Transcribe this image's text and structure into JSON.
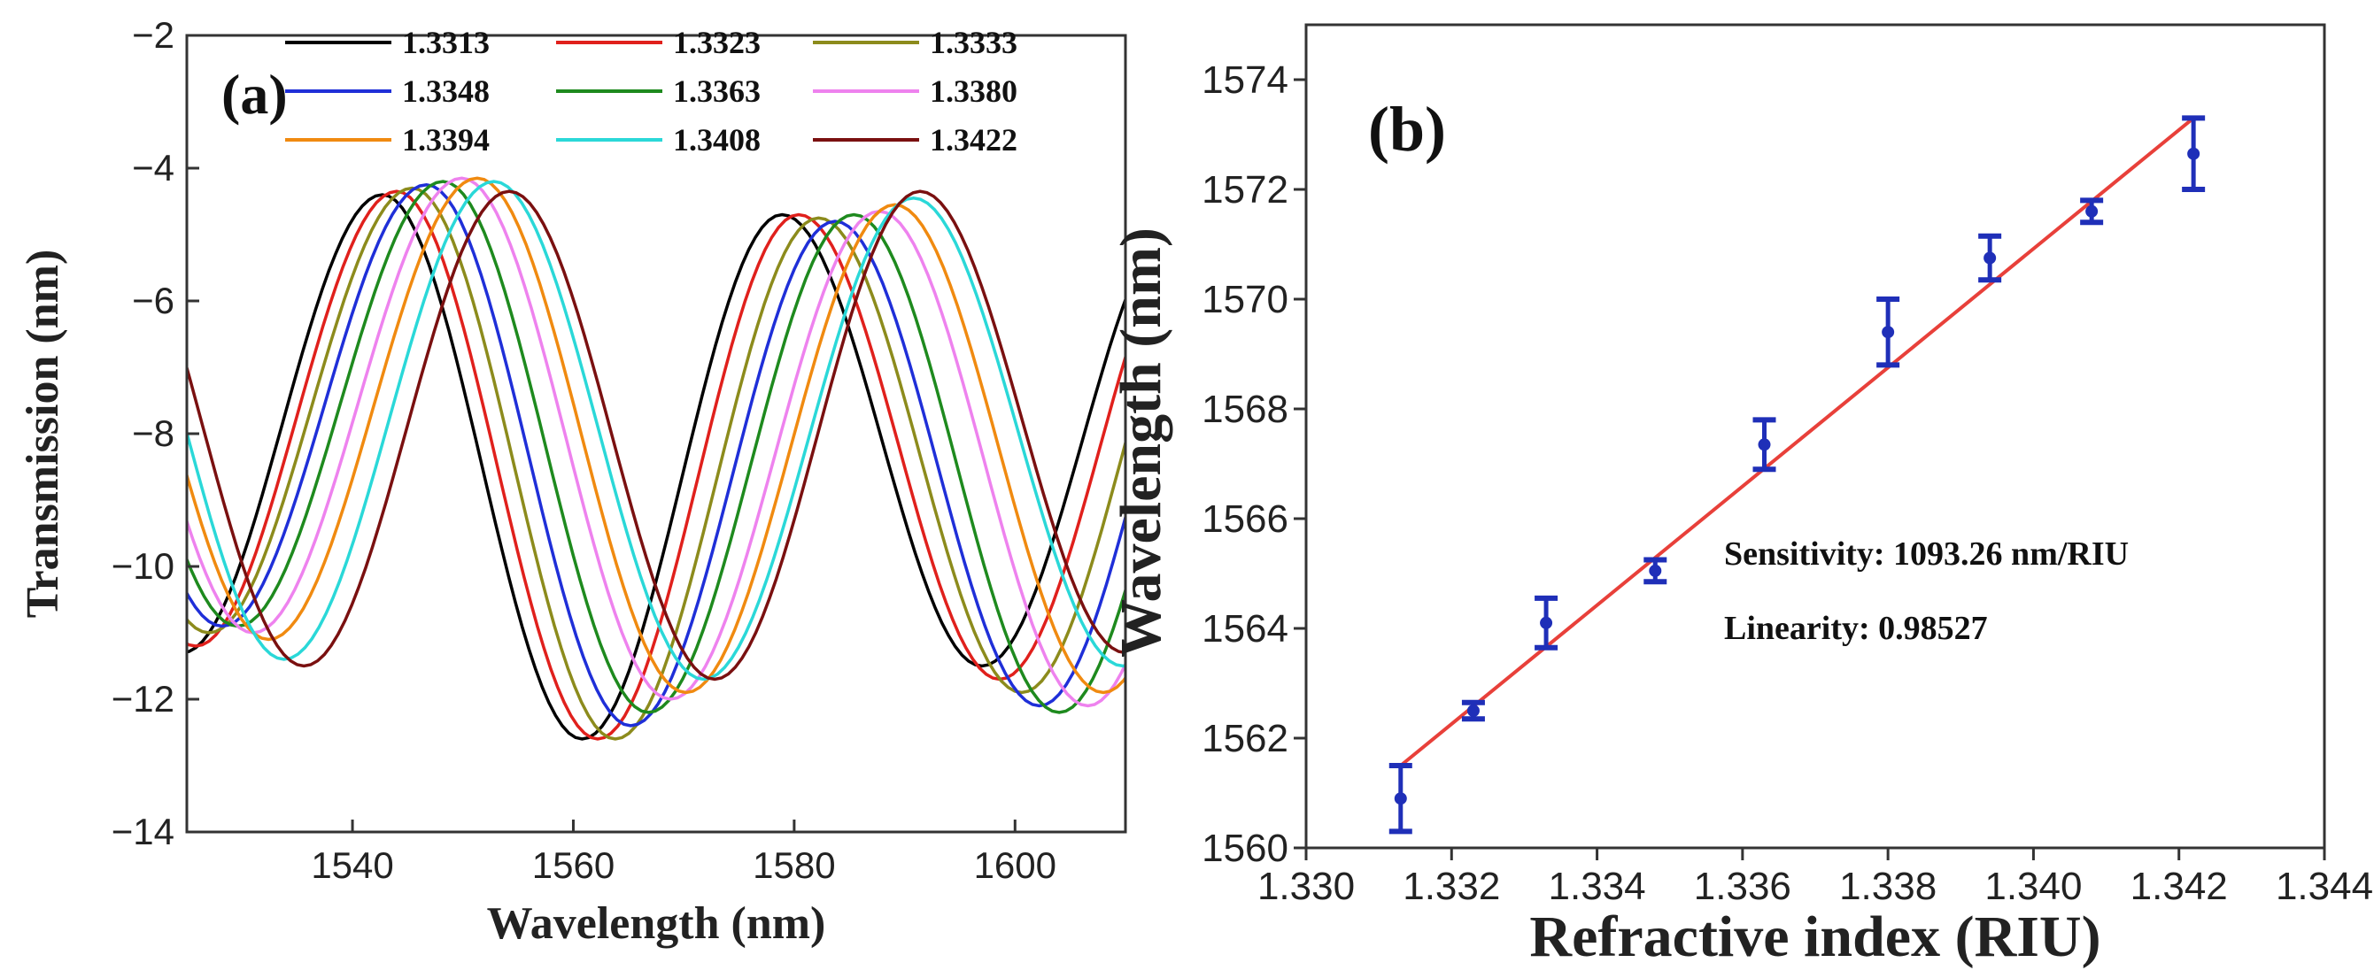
{
  "chart_data": [
    {
      "type": "line",
      "panel_label": "(a)",
      "xlabel": "Wavelength (nm)",
      "ylabel": "Transmission (nm)",
      "xlim": [
        1525,
        1610
      ],
      "ylim": [
        -14,
        -2
      ],
      "xticks": [
        1540,
        1560,
        1580,
        1600
      ],
      "yticks": [
        -2,
        -4,
        -6,
        -8,
        -10,
        -12,
        -14
      ],
      "legend_position": "top-right",
      "series": [
        {
          "name": "1.3313",
          "color": "#000000",
          "minima": [
            1524.6,
            1560.8,
            1597.0
          ],
          "min_values": [
            -11.3,
            -12.6,
            -11.5
          ],
          "max_values": [
            -4.4,
            -4.7
          ]
        },
        {
          "name": "1.3323",
          "color": "#e0201c",
          "minima": [
            1525.8,
            1562.2,
            1598.6
          ],
          "min_values": [
            -11.2,
            -12.6,
            -11.7
          ],
          "max_values": [
            -4.35,
            -4.7
          ]
        },
        {
          "name": "1.3333",
          "color": "#8c8b1c",
          "minima": [
            1527.0,
            1563.8,
            1600.6
          ],
          "min_values": [
            -11.0,
            -12.6,
            -11.9
          ],
          "max_values": [
            -4.3,
            -4.75
          ]
        },
        {
          "name": "1.3348",
          "color": "#1f2fd8",
          "minima": [
            1528.2,
            1565.2,
            1602.2
          ],
          "min_values": [
            -10.9,
            -12.4,
            -12.1
          ],
          "max_values": [
            -4.25,
            -4.8
          ]
        },
        {
          "name": "1.3363",
          "color": "#1e8a1e",
          "minima": [
            1529.6,
            1566.8,
            1604.0
          ],
          "min_values": [
            -10.9,
            -12.2,
            -12.2
          ],
          "max_values": [
            -4.2,
            -4.7
          ]
        },
        {
          "name": "1.3380",
          "color": "#ee82ee",
          "minima": [
            1531.0,
            1568.8,
            1606.6
          ],
          "min_values": [
            -11.0,
            -12.0,
            -12.1
          ],
          "max_values": [
            -4.15,
            -4.65
          ]
        },
        {
          "name": "1.3394",
          "color": "#f08a10",
          "minima": [
            1532.4,
            1570.2,
            1608.0
          ],
          "min_values": [
            -11.1,
            -11.9,
            -11.9
          ],
          "max_values": [
            -4.15,
            -4.55
          ]
        },
        {
          "name": "1.3408",
          "color": "#2ad8d8",
          "minima": [
            1533.8,
            1571.8,
            1609.8
          ],
          "min_values": [
            -11.4,
            -11.7,
            -11.5
          ],
          "max_values": [
            -4.2,
            -4.45
          ]
        },
        {
          "name": "1.3422",
          "color": "#7a1010",
          "minima": [
            1535.6,
            1572.8,
            1610.0
          ],
          "min_values": [
            -11.5,
            -11.7,
            -11.3
          ],
          "max_values": [
            -4.35,
            -4.35
          ]
        }
      ]
    },
    {
      "type": "scatter",
      "panel_label": "(b)",
      "xlabel": "Refractive index (RIU)",
      "ylabel": "Wavelength (nm)",
      "xlim": [
        1.33,
        1.344
      ],
      "ylim": [
        1560,
        1575
      ],
      "xticks": [
        "1.330",
        "1.332",
        "1.334",
        "1.336",
        "1.338",
        "1.340",
        "1.342",
        "1.344"
      ],
      "yticks": [
        "1560",
        "1562",
        "1564",
        "1566",
        "1568",
        "1570",
        "1572",
        "1574"
      ],
      "points": [
        {
          "x": 1.3313,
          "y": 1560.9,
          "err": 0.6
        },
        {
          "x": 1.3323,
          "y": 1562.5,
          "err": 0.15
        },
        {
          "x": 1.3333,
          "y": 1564.1,
          "err": 0.45
        },
        {
          "x": 1.3348,
          "y": 1565.05,
          "err": 0.2
        },
        {
          "x": 1.3363,
          "y": 1567.35,
          "err": 0.45
        },
        {
          "x": 1.338,
          "y": 1569.4,
          "err": 0.6
        },
        {
          "x": 1.3394,
          "y": 1570.75,
          "err": 0.4
        },
        {
          "x": 1.3408,
          "y": 1571.6,
          "err": 0.2
        },
        {
          "x": 1.3422,
          "y": 1572.65,
          "err": 0.65
        }
      ],
      "fit": {
        "x": [
          1.3313,
          1.3422
        ],
        "y": [
          1561.5,
          1573.3
        ],
        "color": "#e8403a"
      },
      "marker_color": "#1f2fb8",
      "annotations": [
        "Sensitivity: 1093.26 nm/RIU",
        "Linearity: 0.98527"
      ]
    }
  ]
}
